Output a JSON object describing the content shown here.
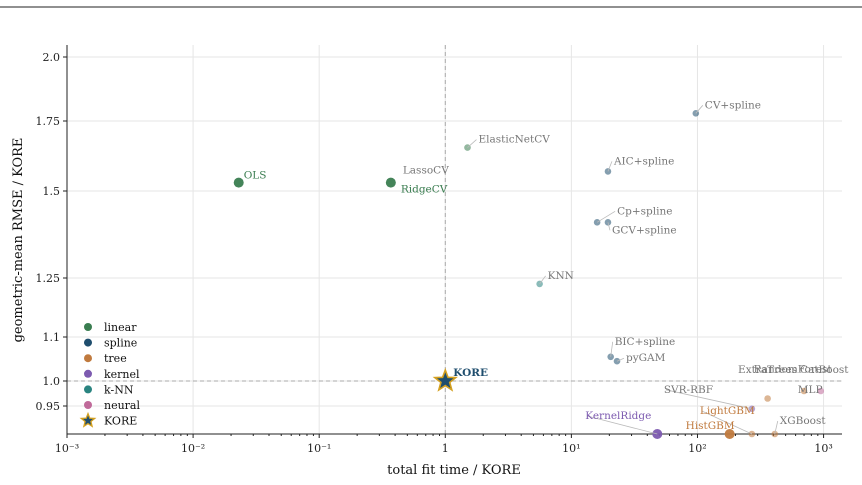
{
  "chart_data": {
    "type": "scatter",
    "xlabel": "total fit time / KORE",
    "ylabel": "geometric-mean RMSE / KORE",
    "xscale": "log",
    "xlim": [
      0.001,
      1400
    ],
    "ylim": [
      0.9,
      2.05
    ],
    "x_ticks": [
      0.001,
      0.01,
      0.1,
      1,
      10,
      100,
      1000
    ],
    "x_tick_labels": [
      "10⁻³",
      "10⁻²",
      "10⁻¹",
      "1",
      "10¹",
      "10²",
      "10³"
    ],
    "y_ticks": [
      0.95,
      1.0,
      1.1,
      1.25,
      1.5,
      1.75,
      2.0
    ],
    "y_tick_labels": [
      "0.95",
      "1.0",
      "1.1",
      "1.25",
      "1.5",
      "1.75",
      "2.0"
    ],
    "grid": true,
    "reference_lines": {
      "x": 1,
      "y": 1
    },
    "legend_position": "lower-left",
    "colors": {
      "linear": "#3a7d50",
      "spline": "#1f4e6e",
      "tree": "#c07a3e",
      "kernel": "#7d5bb0",
      "k-NN": "#2a8480",
      "neural": "#c06a9a",
      "KORE": "#1f4e6e",
      "KORE_edge": "#d4a020"
    },
    "legend": [
      "linear",
      "spline",
      "tree",
      "kernel",
      "k-NN",
      "neural",
      "KORE"
    ],
    "points": [
      {
        "label": "OLS",
        "family": "linear",
        "x": 0.023,
        "y": 1.53,
        "highlight": true
      },
      {
        "label": "LassoCV",
        "family": "linear",
        "x": 0.37,
        "y": 1.53,
        "highlight": true
      },
      {
        "label": "RidgeCV",
        "family": "linear",
        "x": 0.37,
        "y": 1.53,
        "highlight": true
      },
      {
        "label": "ElasticNetCV",
        "family": "linear",
        "x": 1.5,
        "y": 1.655
      },
      {
        "label": "CV+spline",
        "family": "spline",
        "x": 97,
        "y": 1.78
      },
      {
        "label": "AIC+spline",
        "family": "spline",
        "x": 19.5,
        "y": 1.57
      },
      {
        "label": "Cp+spline",
        "family": "spline",
        "x": 16,
        "y": 1.41
      },
      {
        "label": "GCV+spline",
        "family": "spline",
        "x": 19.5,
        "y": 1.41
      },
      {
        "label": "KNN",
        "family": "k-NN",
        "x": 5.6,
        "y": 1.235
      },
      {
        "label": "BIC+spline",
        "family": "spline",
        "x": 20.5,
        "y": 1.055
      },
      {
        "label": "pyGAM",
        "family": "spline",
        "x": 23,
        "y": 1.045
      },
      {
        "label": "KORE",
        "family": "KORE",
        "x": 1.0,
        "y": 1.0,
        "highlight": true
      },
      {
        "label": "RandomForest",
        "family": "tree",
        "x": 360,
        "y": 0.965
      },
      {
        "label": "ExtraTrees",
        "family": "tree",
        "x": 700,
        "y": 0.98
      },
      {
        "label": "CatBoost",
        "family": "tree",
        "x": 700,
        "y": 0.98
      },
      {
        "label": "MLP",
        "family": "neural",
        "x": 950,
        "y": 0.98
      },
      {
        "label": "SVR-RBF",
        "family": "kernel",
        "x": 270,
        "y": 0.945
      },
      {
        "label": "LightGBM",
        "family": "tree",
        "x": 270,
        "y": 0.895
      },
      {
        "label": "HistGBM",
        "family": "tree",
        "x": 180,
        "y": 0.895,
        "highlight": true
      },
      {
        "label": "XGBoost",
        "family": "tree",
        "x": 410,
        "y": 0.895
      },
      {
        "label": "KernelRidge",
        "family": "kernel",
        "x": 48,
        "y": 0.895,
        "highlight": true
      }
    ]
  }
}
